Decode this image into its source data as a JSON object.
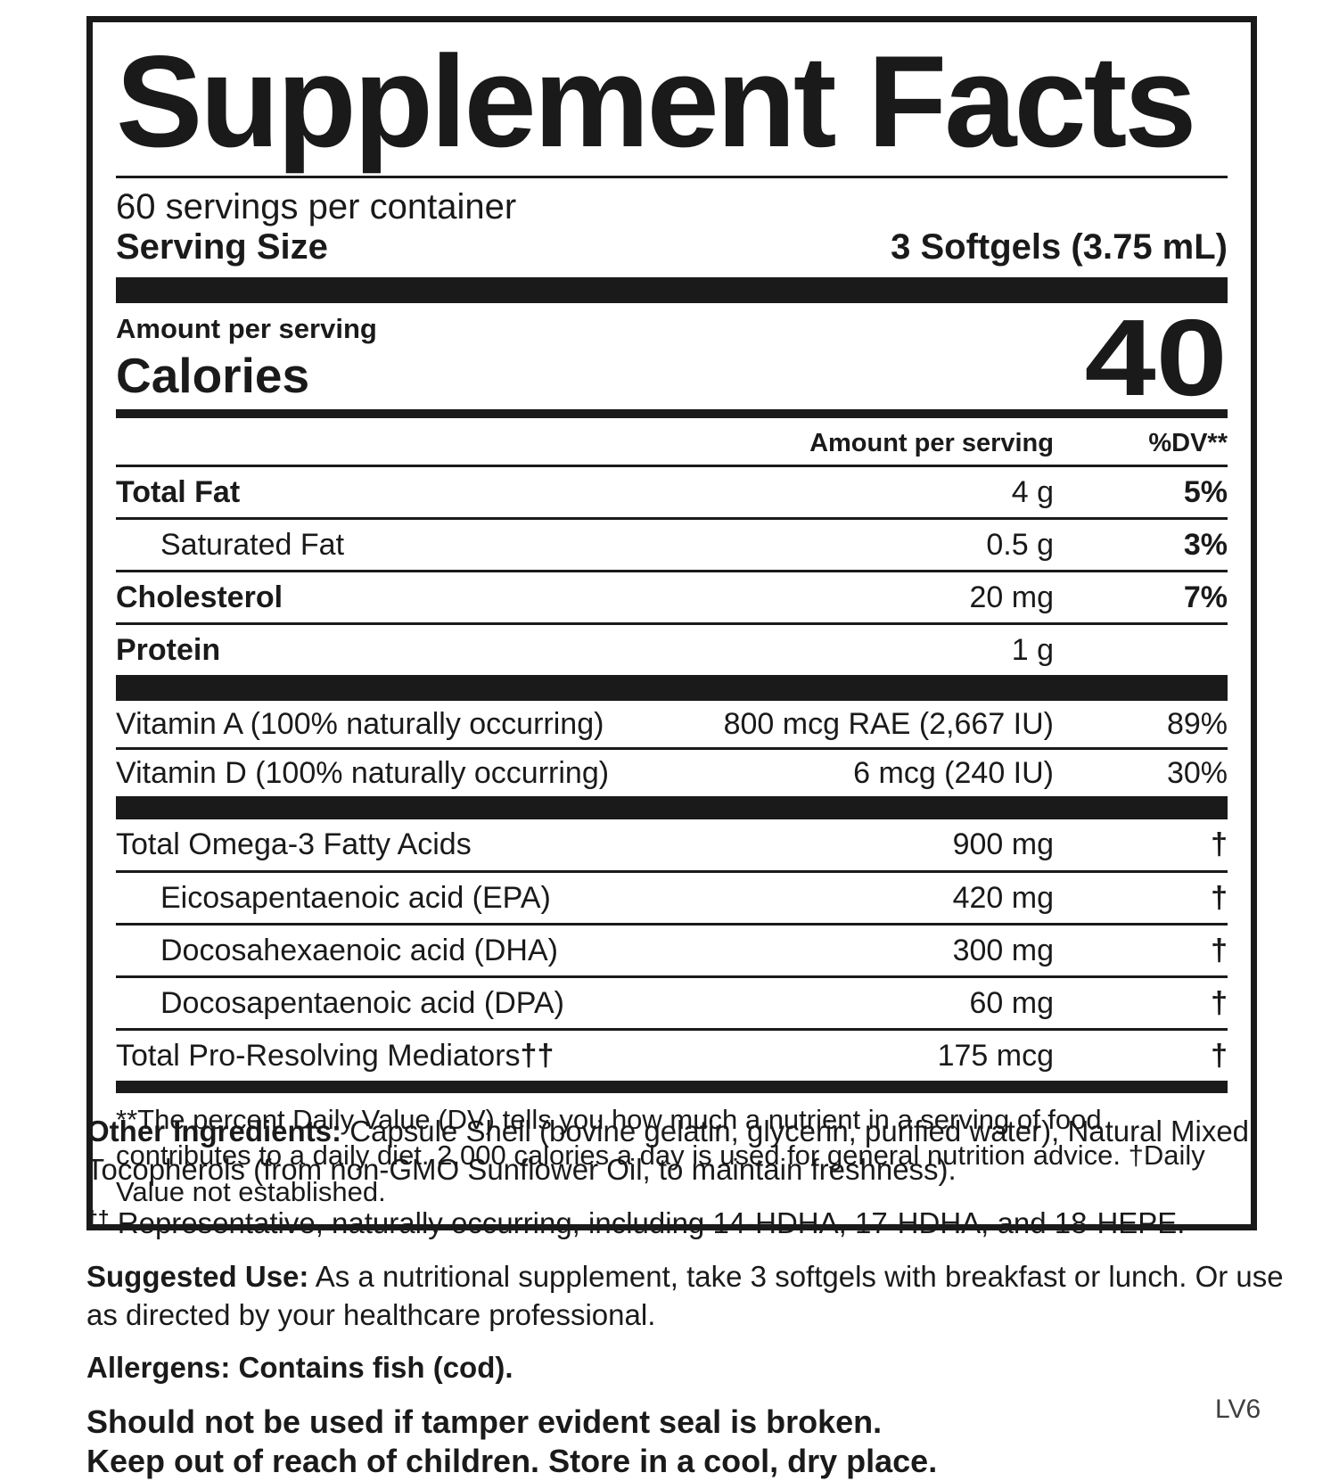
{
  "label": {
    "title": "Supplement Facts",
    "servings_per_container": "60 servings per container",
    "serving_size_label": "Serving Size",
    "serving_size_value": "3 Softgels (3.75 mL)",
    "amount_per_serving_label": "Amount per serving",
    "calories_label": "Calories",
    "calories_value": "40",
    "columns": {
      "amount_header": "Amount per serving",
      "dv_header": "%DV**"
    },
    "macro_rows": [
      {
        "name": "Total Fat",
        "amount": "4 g",
        "dv": "5%"
      },
      {
        "name": "Saturated Fat",
        "amount": "0.5 g",
        "dv": "3%"
      },
      {
        "name": "Cholesterol",
        "amount": "20 mg",
        "dv": "7%"
      },
      {
        "name": "Protein",
        "amount": "1 g",
        "dv": ""
      }
    ],
    "vitamin_rows": [
      {
        "name": "Vitamin A (100% naturally occurring)",
        "amount": "800 mcg RAE (2,667 IU)",
        "dv": "89%"
      },
      {
        "name": "Vitamin D (100% naturally occurring)",
        "amount": "6 mcg (240 IU)",
        "dv": "30%"
      }
    ],
    "omega_rows": [
      {
        "name": "Total Omega-3 Fatty Acids",
        "suffix": "",
        "amount": "900 mg",
        "dv": "†"
      },
      {
        "name": "Eicosapentaenoic acid (EPA)",
        "suffix": "",
        "amount": "420 mg",
        "dv": "†"
      },
      {
        "name": "Docosahexaenoic acid (DHA)",
        "suffix": "",
        "amount": "300 mg",
        "dv": "†"
      },
      {
        "name": "Docosapentaenoic acid (DPA)",
        "suffix": "",
        "amount": "60 mg",
        "dv": "†"
      },
      {
        "name": "Total Pro-Resolving Mediators",
        "suffix": "††",
        "amount": "175 mcg",
        "dv": "†"
      }
    ],
    "footnote": "**The percent Daily Value (DV) tells you how much a nutrient in a serving of food contributes to a daily diet. 2,000 calories a day is used for general nutrition advice. †Daily Value not established."
  },
  "below": {
    "other_ingredients_label": "Other Ingredients:",
    "other_ingredients_text": " Capsule Shell (bovine gelatin, glycerin, purified water), Natural Mixed Tocopherols (from non-GMO Sunflower Oil, to maintain freshness).",
    "representative_prefix": "††",
    "representative_text": " Representative, naturally occurring, including 14-HDHA, 17-HDHA, and 18-HEPE.",
    "suggested_use_label": "Suggested Use:",
    "suggested_use_text": " As a nutritional supplement, take 3 softgels with breakfast or lunch. Or use as directed by your healthcare professional.",
    "allergens": "Allergens: Contains fish (cod).",
    "warning_line1": "Should not be used if tamper evident seal is broken.",
    "warning_line2": "Keep out of reach of children. Store in a cool, dry place.",
    "version_code": "LV6"
  },
  "colors": {
    "ink": "#1a1a1a",
    "code_gray": "#3f3f3f"
  }
}
